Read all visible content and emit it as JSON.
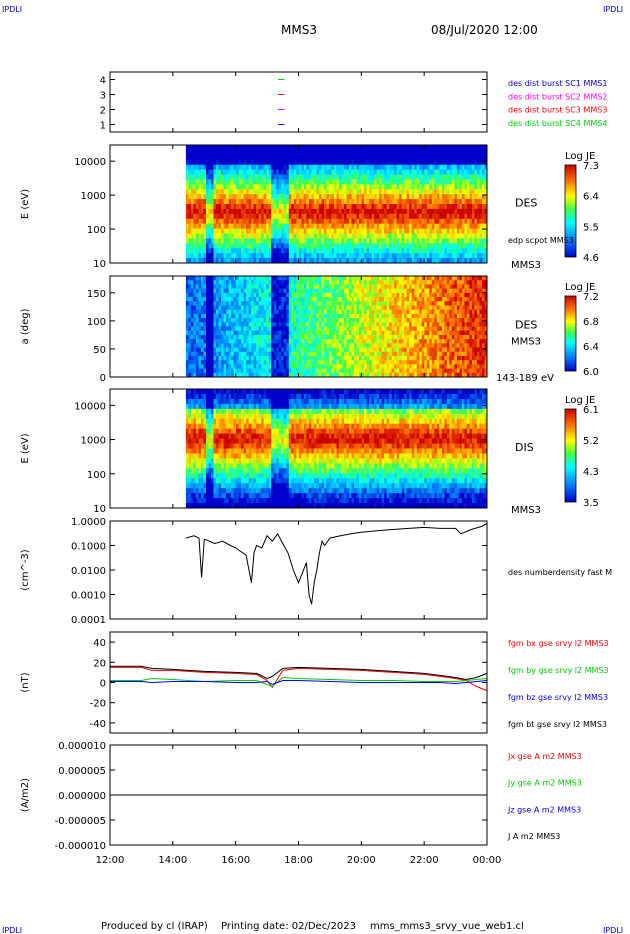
{
  "header": {
    "corner_tl": "IPDLI",
    "corner_tr": "IPDLI",
    "corner_bl": "IPDLI",
    "corner_br": "IPDLI",
    "title": "MMS3",
    "datetime": "08/Jul/2020 12:00"
  },
  "footer": {
    "producer": "Produced by cl (IRAP)",
    "printing": "Printing date: 02/Dec/2023",
    "script": "mms_mms3_srvy_vue_web1.cl"
  },
  "colors": {
    "red": "#ff0000",
    "green": "#00cc00",
    "blue": "#0000ff",
    "magenta": "#ff00ff",
    "black": "#000000",
    "label_blue": "#0000cc"
  },
  "chart_data": [
    {
      "type": "line",
      "title": "",
      "ylim": [
        0.5,
        4.5
      ],
      "yticks": [
        "1",
        "2",
        "3",
        "4"
      ],
      "legend": [
        "des dist burst SC1 MMS1",
        "des dist burst SC2 MMS2",
        "des dist burst SC3 MMS3",
        "des dist burst SC4 MMS4"
      ],
      "series": [
        {
          "name": "des dist burst SC4 MMS4",
          "level": 4,
          "x": [
            "17:21",
            "17:33"
          ]
        },
        {
          "name": "des dist burst SC3 MMS3",
          "level": 3,
          "x": [
            "17:21",
            "17:33"
          ]
        },
        {
          "name": "des dist burst SC2 MMS2",
          "level": 2,
          "x": [
            "17:21",
            "17:33"
          ]
        },
        {
          "name": "des dist burst SC1 MMS1",
          "level": 1,
          "x": [
            "17:21",
            "17:33"
          ]
        }
      ]
    },
    {
      "type": "heatmap",
      "ylabel": "E (eV)",
      "yscale": "log",
      "ylim": [
        10,
        30000
      ],
      "yticks": [
        "10",
        "100",
        "1000",
        "10000"
      ],
      "instrument": "DES",
      "spacecraft": "MMS3",
      "overlay_label": "edp scpot MMS3",
      "colorbar": {
        "title": "Log JE",
        "min": 4.6,
        "max": 7.3,
        "ticks": [
          "7.3",
          "6.4",
          "5.5",
          "4.6"
        ]
      },
      "data_start": "14:25"
    },
    {
      "type": "heatmap",
      "ylabel": "a (deg)",
      "ylim": [
        0,
        180
      ],
      "yticks": [
        "0",
        "50",
        "100",
        "150"
      ],
      "instrument": "DES",
      "spacecraft": "MMS3",
      "energy_range": "143-189 eV",
      "colorbar": {
        "title": "Log JE",
        "min": 6.0,
        "max": 7.2,
        "ticks": [
          "7.2",
          "6.8",
          "6.4",
          "6.0"
        ]
      },
      "data_start": "14:25"
    },
    {
      "type": "heatmap",
      "ylabel": "E (eV)",
      "yscale": "log",
      "ylim": [
        10,
        30000
      ],
      "yticks": [
        "10",
        "100",
        "1000",
        "10000"
      ],
      "instrument": "DIS",
      "spacecraft": "MMS3",
      "colorbar": {
        "title": "Log JE",
        "min": 3.5,
        "max": 6.1,
        "ticks": [
          "6.1",
          "5.2",
          "4.3",
          "3.5"
        ]
      },
      "data_start": "14:25"
    },
    {
      "type": "line",
      "ylabel": "(cm^-3)",
      "yscale": "log",
      "ylim": [
        0.0001,
        1.0
      ],
      "yticks": [
        "1.0000",
        "0.1000",
        "0.0100",
        "0.0010",
        "0.0001"
      ],
      "legend": [
        "des numberdensity fast M"
      ],
      "series": [
        {
          "name": "des numberdensity fast M",
          "x": [
            "14:25",
            "14:40",
            "14:50",
            "14:55",
            "15:00",
            "15:10",
            "15:20",
            "15:35",
            "15:50",
            "16:00",
            "16:20",
            "16:30",
            "16:35",
            "16:40",
            "16:50",
            "17:00",
            "17:10",
            "17:20",
            "17:30",
            "17:40",
            "17:50",
            "18:00",
            "18:15",
            "18:20",
            "18:25",
            "18:30",
            "18:35",
            "18:40",
            "18:45",
            "18:50",
            "19:00",
            "19:20",
            "19:40",
            "20:00",
            "20:30",
            "21:00",
            "21:30",
            "22:00",
            "22:30",
            "23:00",
            "23:10",
            "23:30",
            "23:50",
            "00:00"
          ],
          "values": [
            0.2,
            0.25,
            0.2,
            0.005,
            0.18,
            0.15,
            0.12,
            0.15,
            0.1,
            0.08,
            0.04,
            0.003,
            0.05,
            0.1,
            0.08,
            0.25,
            0.15,
            0.3,
            0.12,
            0.05,
            0.01,
            0.003,
            0.02,
            0.001,
            0.0004,
            0.003,
            0.01,
            0.05,
            0.15,
            0.1,
            0.2,
            0.25,
            0.3,
            0.35,
            0.4,
            0.45,
            0.5,
            0.55,
            0.5,
            0.5,
            0.3,
            0.45,
            0.6,
            0.8
          ]
        }
      ]
    },
    {
      "type": "line",
      "ylabel": "(nT)",
      "ylim": [
        -50,
        50
      ],
      "yticks": [
        "40",
        "20",
        "0",
        "-20",
        "-40"
      ],
      "legend": [
        "fgm bx gse srvy l2 MMS3",
        "fgm by gse srvy l2 MMS3",
        "fgm bz gse srvy l2 MMS3",
        "fgm bt gse srvy l2 MMS3"
      ],
      "series": [
        {
          "name": "fgm bx gse srvy l2 MMS3",
          "x": [
            "12:00",
            "13:00",
            "13:20",
            "14:00",
            "15:00",
            "16:00",
            "16:40",
            "17:00",
            "17:10",
            "17:30",
            "18:00",
            "19:00",
            "20:00",
            "21:00",
            "22:00",
            "22:30",
            "23:00",
            "23:20",
            "23:40",
            "00:00"
          ],
          "values": [
            15,
            15,
            12,
            12,
            10,
            9,
            8,
            2,
            -5,
            12,
            14,
            13,
            12,
            10,
            8,
            6,
            4,
            2,
            -4,
            -8
          ]
        },
        {
          "name": "fgm by gse srvy l2 MMS3",
          "x": [
            "12:00",
            "13:00",
            "13:20",
            "14:00",
            "15:00",
            "16:00",
            "16:40",
            "17:00",
            "17:10",
            "17:30",
            "18:00",
            "19:00",
            "20:00",
            "21:00",
            "22:00",
            "22:30",
            "23:00",
            "23:20",
            "23:40",
            "00:00"
          ],
          "values": [
            2,
            2,
            4,
            3,
            1,
            2,
            2,
            -2,
            -4,
            5,
            4,
            3,
            2,
            2,
            1,
            1,
            1,
            2,
            3,
            4
          ]
        },
        {
          "name": "fgm bz gse srvy l2 MMS3",
          "x": [
            "12:00",
            "13:00",
            "13:20",
            "14:00",
            "15:00",
            "16:00",
            "16:40",
            "17:00",
            "17:10",
            "17:30",
            "18:00",
            "19:00",
            "20:00",
            "21:00",
            "22:00",
            "22:30",
            "23:00",
            "23:20",
            "23:40",
            "00:00"
          ],
          "values": [
            1,
            1,
            0,
            1,
            1,
            0,
            0,
            1,
            -2,
            2,
            2,
            1,
            0,
            0,
            0,
            0,
            -1,
            0,
            1,
            2
          ]
        },
        {
          "name": "fgm bt gse srvy l2 MMS3",
          "x": [
            "12:00",
            "13:00",
            "13:20",
            "14:00",
            "15:00",
            "16:00",
            "16:40",
            "17:00",
            "17:10",
            "17:30",
            "18:00",
            "19:00",
            "20:00",
            "21:00",
            "22:00",
            "22:30",
            "23:00",
            "23:20",
            "23:40",
            "00:00"
          ],
          "values": [
            16,
            16,
            14,
            13,
            11,
            10,
            9,
            4,
            6,
            14,
            15,
            14,
            13,
            11,
            9,
            7,
            5,
            3,
            5,
            9
          ]
        }
      ]
    },
    {
      "type": "line",
      "ylabel": "(A/m2)",
      "ylim": [
        -1e-05,
        1e-05
      ],
      "yticks": [
        "0.000010",
        "0.000005",
        "0.000000",
        "-0.000005",
        "-0.000010"
      ],
      "xlabel_ticks": [
        "12:00",
        "14:00",
        "16:00",
        "18:00",
        "20:00",
        "22:00",
        "00:00"
      ],
      "legend": [
        "Jx gse A m2 MMS3",
        "Jy gse A m2 MMS3",
        "Jz gse A m2 MMS3",
        "J A m2 MMS3"
      ],
      "series": [
        {
          "name": "J A m2 MMS3",
          "x": [
            "12:00",
            "00:00"
          ],
          "values": [
            0,
            0
          ]
        }
      ]
    }
  ]
}
